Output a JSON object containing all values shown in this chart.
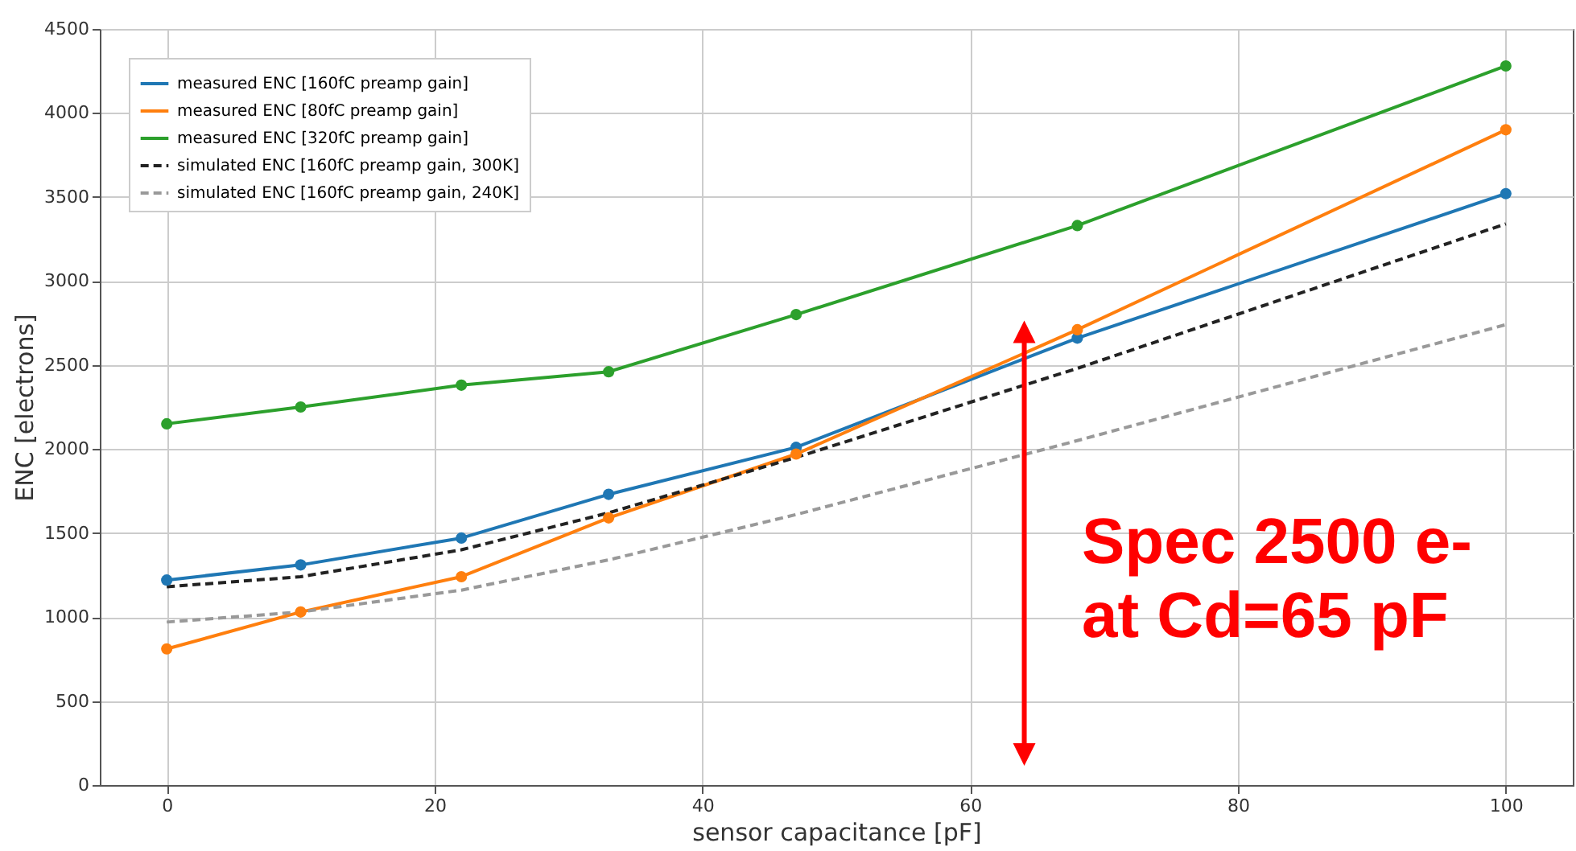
{
  "chart_data": {
    "type": "line",
    "xlabel": "sensor capacitance [pF]",
    "ylabel": "ENC [electrons]",
    "x": [
      0,
      10,
      22,
      33,
      47,
      68,
      100
    ],
    "series": [
      {
        "name": "measured ENC [160fC preamp gain]",
        "color": "#1f77b4",
        "values": [
          1220,
          1310,
          1470,
          1730,
          2010,
          2660,
          3520
        ]
      },
      {
        "name": "measured ENC [80fC preamp gain]",
        "color": "#ff7f0e",
        "values": [
          810,
          1030,
          1240,
          1590,
          1970,
          2710,
          3900
        ]
      },
      {
        "name": "measured ENC [320fC preamp gain]",
        "color": "#2ca02c",
        "values": [
          2150,
          2250,
          2380,
          2460,
          2800,
          3330,
          4280
        ]
      },
      {
        "name": "simulated ENC [160fC preamp gain, 300K]",
        "color": "#222222",
        "values": [
          1180,
          1240,
          1400,
          1620,
          1950,
          2480,
          3340
        ],
        "line_style": "dashed",
        "marker": "none"
      },
      {
        "name": "simulated ENC [160fC preamp gain, 240K]",
        "color": "#999999",
        "values": [
          970,
          1030,
          1160,
          1340,
          1610,
          2050,
          2740
        ],
        "line_style": "dashed",
        "marker": "none"
      }
    ],
    "xlim": [
      -5,
      105
    ],
    "xticks": [
      0,
      20,
      40,
      60,
      80,
      100
    ],
    "ylim": [
      0,
      4500
    ],
    "yticks": [
      0,
      500,
      1000,
      1500,
      2000,
      2500,
      3000,
      3500,
      4000,
      4500
    ],
    "grid": true,
    "legend": "top left",
    "marker": "circle",
    "line_style": "solid",
    "annotations": [
      {
        "text": "Spec 2500 e-\nat Cd=65 pF",
        "x": 65,
        "y": 2650
      }
    ]
  }
}
